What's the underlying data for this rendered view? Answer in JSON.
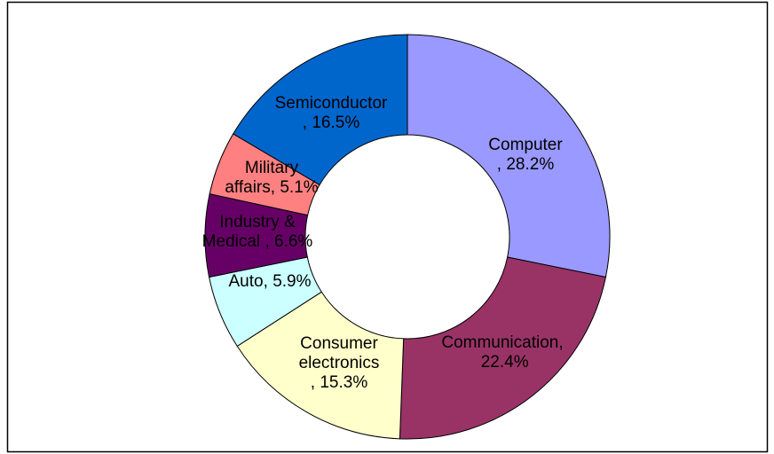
{
  "chart_data": {
    "type": "donut",
    "categories": [
      "Computer ,",
      "Communication,",
      "Consumer electronics ,",
      "Auto,",
      "Industry & Medical ,",
      "Military affairs,",
      "Semiconductor ,"
    ],
    "values": [
      28.2,
      22.4,
      15.3,
      5.9,
      6.6,
      5.1,
      16.5
    ],
    "value_labels": [
      "28.2%",
      "22.4%",
      "15.3%",
      "5.9%",
      "6.6%",
      "5.1%",
      "16.5%"
    ],
    "colors": [
      "#9999ff",
      "#993366",
      "#ffffcc",
      "#ccffff",
      "#660066",
      "#ff8080",
      "#0066cc"
    ]
  }
}
